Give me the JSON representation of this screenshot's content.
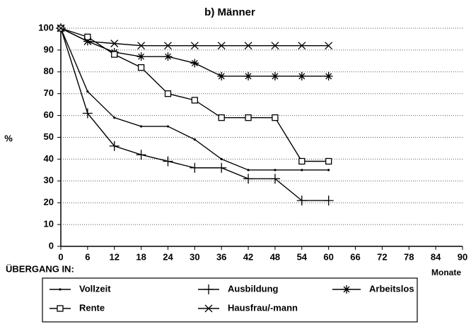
{
  "chart_data": {
    "type": "line",
    "title": "b) Männer",
    "ylabel": "%",
    "xlabel": "Monate",
    "legend_title": "ÜBERGANG IN:",
    "x": [
      0,
      6,
      12,
      18,
      24,
      30,
      36,
      42,
      48,
      54,
      60
    ],
    "series": [
      {
        "name": "Vollzeit",
        "color": "#000000",
        "marker": "dot",
        "values": [
          100,
          71,
          59,
          55,
          55,
          49,
          40,
          35,
          35,
          35,
          35
        ]
      },
      {
        "name": "Ausbildung",
        "color": "#000000",
        "marker": "plus",
        "values": [
          100,
          61,
          46,
          42,
          39,
          36,
          36,
          31,
          31,
          21,
          21
        ]
      },
      {
        "name": "Arbeitslos",
        "color": "#000000",
        "marker": "star",
        "values": [
          100,
          94,
          89,
          87,
          87,
          84,
          78,
          78,
          78,
          78,
          78
        ]
      },
      {
        "name": "Rente",
        "color": "#000000",
        "marker": "square",
        "values": [
          100,
          96,
          88,
          82,
          70,
          67,
          59,
          59,
          59,
          39,
          39
        ]
      },
      {
        "name": "Hausfrau/-mann",
        "color": "#000000",
        "marker": "x",
        "values": [
          100,
          94,
          93,
          92,
          92,
          92,
          92,
          92,
          92,
          92,
          92
        ]
      }
    ],
    "xlim": [
      0,
      90
    ],
    "xticks": [
      0,
      6,
      12,
      18,
      24,
      30,
      36,
      42,
      48,
      54,
      60,
      66,
      72,
      78,
      84,
      90
    ],
    "ylim": [
      0,
      100
    ],
    "yticks": [
      0,
      10,
      20,
      30,
      40,
      50,
      60,
      70,
      80,
      90,
      100
    ],
    "grid": true,
    "legend": "bottom"
  }
}
